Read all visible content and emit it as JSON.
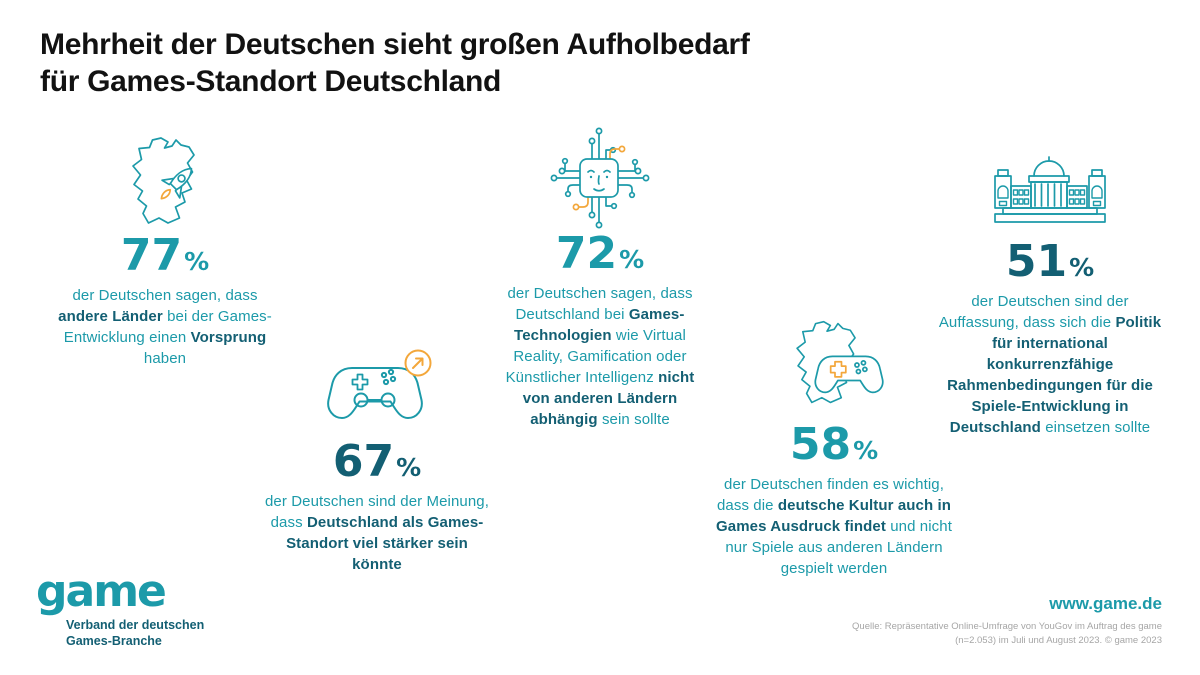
{
  "title": {
    "line1": "Mehrheit der Deutschen sieht großen Aufholbedarf",
    "line2": "für Games-Standort Deutschland"
  },
  "colors": {
    "teal_bright": "#1c9aa9",
    "teal_dark": "#135f73",
    "orange": "#f3a73b",
    "title_black": "#121212",
    "source_gray": "#a6a6a6"
  },
  "chart_data": {
    "type": "table",
    "title": "Mehrheit der Deutschen sieht großen Aufholbedarf für Games-Standort Deutschland",
    "unit": "%",
    "categories": [
      "andere Länder haben bei der Games-Entwicklung einen Vorsprung",
      "Deutschland als Games-Standort könnte viel stärker sein",
      "Deutschland sollte bei Games-Technologien nicht von anderen Ländern abhängig sein",
      "deutsche Kultur soll auch in Games Ausdruck finden",
      "Politik sollte sich für konkurrenzfähige Rahmenbedingungen einsetzen"
    ],
    "values": [
      77,
      67,
      72,
      58,
      51
    ],
    "source": "Quelle: Repräsentative Online-Umfrage von YouGov im Auftrag des game (n=2.053) im Juli und August 2023. © game 2023"
  },
  "stats": [
    {
      "value": "77",
      "percent_sign": "%",
      "number_color": "#1c9aa9",
      "icon": "germany-map-rocket-icon",
      "segments": [
        {
          "text": "der Deutschen sagen, dass ",
          "bold": false
        },
        {
          "text": "andere Länder",
          "bold": true
        },
        {
          "text": " bei der Games-Entwicklung einen ",
          "bold": false
        },
        {
          "text": "Vorsprung",
          "bold": true
        },
        {
          "text": " haben",
          "bold": false
        }
      ]
    },
    {
      "value": "67",
      "percent_sign": "%",
      "number_color": "#135f73",
      "icon": "gamepad-growth-icon",
      "segments": [
        {
          "text": "der Deutschen sind der Meinung, dass ",
          "bold": false
        },
        {
          "text": "Deutschland als Games-Standort viel stärker sein könnte",
          "bold": true
        }
      ]
    },
    {
      "value": "72",
      "percent_sign": "%",
      "number_color": "#1c9aa9",
      "icon": "ai-chip-icon",
      "segments": [
        {
          "text": "der Deutschen sagen, dass Deutschland bei ",
          "bold": false
        },
        {
          "text": "Games-Technologien",
          "bold": true
        },
        {
          "text": " wie Virtual Reality, Gamification oder Künstlicher Intelligenz ",
          "bold": false
        },
        {
          "text": "nicht von anderen Ländern abhängig",
          "bold": true
        },
        {
          "text": " sein sollte",
          "bold": false
        }
      ]
    },
    {
      "value": "58",
      "percent_sign": "%",
      "number_color": "#1c9aa9",
      "icon": "germany-map-gamepad-icon",
      "segments": [
        {
          "text": "der Deutschen finden es wichtig, dass die ",
          "bold": false
        },
        {
          "text": "deutsche Kultur auch in Games Ausdruck findet",
          "bold": true
        },
        {
          "text": " und nicht nur Spiele aus anderen Ländern gespielt werden",
          "bold": false
        }
      ]
    },
    {
      "value": "51",
      "percent_sign": "%",
      "number_color": "#135f73",
      "icon": "reichstag-icon",
      "segments": [
        {
          "text": "der Deutschen sind der Auffassung, dass sich die ",
          "bold": false
        },
        {
          "text": "Politik für international konkurrenzfähige Rahmenbedingungen für die Spiele-Entwicklung in Deutschland",
          "bold": true
        },
        {
          "text": " einsetzen sollte",
          "bold": false
        }
      ]
    }
  ],
  "footer": {
    "logo_text": "game",
    "logo_subtitle_line1": "Verband der deutschen",
    "logo_subtitle_line2": "Games-Branche",
    "website": "www.game.de",
    "source_line1": "Quelle: Repräsentative Online-Umfrage von YouGov im Auftrag des game",
    "source_line2": "(n=2.053) im Juli und August 2023. © game 2023"
  }
}
